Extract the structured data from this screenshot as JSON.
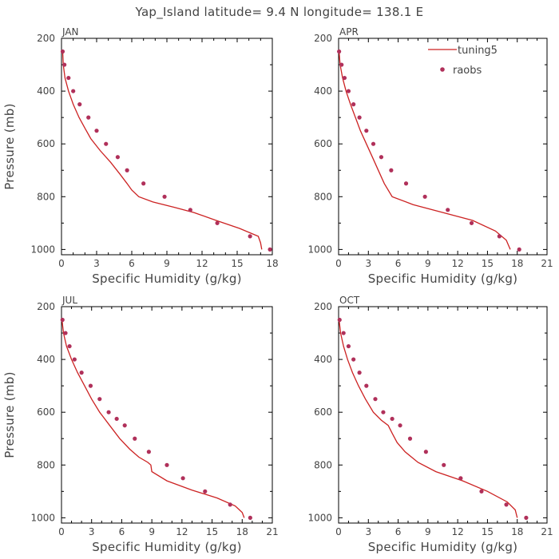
{
  "figure": {
    "title": "Yap_Island  latitude= 9.4 N longitude= 138.1 E"
  },
  "colors": {
    "model_line": "#cc2222",
    "obs_marker": "#b0305a",
    "frame": "#000000",
    "text": "#444444"
  },
  "legend": {
    "entries": [
      {
        "label": "tuning5",
        "style": "line",
        "color": "#cc2222"
      },
      {
        "label": "raobs",
        "style": "marker",
        "color": "#b0305a"
      }
    ],
    "placement": "top-right of APR panel"
  },
  "chart_data": [
    {
      "type": "line",
      "panel": "JAN",
      "xlabel": "Specific Humidity (g/kg)",
      "ylabel": "Pressure (mb)",
      "xlim": [
        0,
        18
      ],
      "ylim": [
        200,
        1020
      ],
      "y_inverted": true,
      "xticks": [
        0,
        3,
        6,
        9,
        12,
        15,
        18
      ],
      "yticks": [
        200,
        400,
        600,
        800,
        1000
      ],
      "series": [
        {
          "name": "tuning5",
          "style": "line",
          "x": [
            0.1,
            0.15,
            0.3,
            0.6,
            1.0,
            1.5,
            2.0,
            2.5,
            3.3,
            4.2,
            5.0,
            5.6,
            6.0,
            6.6,
            7.8,
            9.6,
            11.3,
            13.2,
            15.2,
            16.8,
            17.0,
            17.1
          ],
          "y": [
            250,
            300,
            350,
            400,
            450,
            500,
            540,
            580,
            625,
            670,
            715,
            750,
            775,
            800,
            820,
            840,
            860,
            890,
            920,
            950,
            975,
            1000
          ]
        },
        {
          "name": "raobs",
          "style": "markers",
          "x": [
            0.1,
            0.25,
            0.6,
            1.0,
            1.55,
            2.3,
            3.0,
            3.8,
            4.8,
            5.6,
            7.0,
            8.8,
            11.0,
            13.3,
            16.1,
            17.8
          ],
          "y": [
            250,
            300,
            350,
            400,
            450,
            500,
            550,
            600,
            650,
            700,
            750,
            800,
            850,
            900,
            950,
            1000
          ]
        }
      ]
    },
    {
      "type": "line",
      "panel": "APR",
      "xlabel": "Specific Humidity (g/kg)",
      "ylabel": "",
      "xlim": [
        0,
        21
      ],
      "ylim": [
        200,
        1020
      ],
      "y_inverted": true,
      "xticks": [
        0,
        3,
        6,
        9,
        12,
        15,
        18,
        21
      ],
      "yticks": [
        200,
        400,
        600,
        800,
        1000
      ],
      "series": [
        {
          "name": "tuning5",
          "style": "line",
          "x": [
            0.05,
            0.15,
            0.4,
            0.75,
            1.2,
            1.7,
            2.2,
            2.8,
            3.4,
            4.0,
            4.6,
            5.4,
            7.5,
            10.5,
            13.5,
            15.8,
            16.9,
            17.3
          ],
          "y": [
            250,
            300,
            350,
            400,
            450,
            500,
            550,
            600,
            650,
            700,
            750,
            800,
            830,
            860,
            890,
            930,
            965,
            1000
          ]
        },
        {
          "name": "raobs",
          "style": "markers",
          "x": [
            0.05,
            0.3,
            0.6,
            1.0,
            1.5,
            2.1,
            2.8,
            3.5,
            4.3,
            5.3,
            6.8,
            8.7,
            11.0,
            13.4,
            16.2,
            18.2
          ],
          "y": [
            250,
            300,
            350,
            400,
            450,
            500,
            550,
            600,
            650,
            700,
            750,
            800,
            850,
            900,
            950,
            1000
          ]
        }
      ]
    },
    {
      "type": "line",
      "panel": "JUL",
      "xlabel": "Specific Humidity (g/kg)",
      "ylabel": "Pressure (mb)",
      "xlim": [
        0,
        21
      ],
      "ylim": [
        200,
        1020
      ],
      "y_inverted": true,
      "xticks": [
        0,
        3,
        6,
        9,
        12,
        15,
        18,
        21
      ],
      "yticks": [
        200,
        400,
        600,
        800,
        1000
      ],
      "series": [
        {
          "name": "tuning5",
          "style": "line",
          "x": [
            0.05,
            0.2,
            0.5,
            1.0,
            1.6,
            2.3,
            3.0,
            3.8,
            4.8,
            5.8,
            6.8,
            7.7,
            8.6,
            8.9,
            9.0,
            10.5,
            13.0,
            15.5,
            17.3,
            18.0,
            18.2
          ],
          "y": [
            250,
            300,
            350,
            400,
            450,
            500,
            550,
            600,
            650,
            700,
            740,
            770,
            790,
            800,
            825,
            860,
            895,
            925,
            955,
            980,
            1000
          ]
        },
        {
          "name": "raobs",
          "style": "markers",
          "x": [
            0.1,
            0.4,
            0.8,
            1.3,
            2.0,
            2.9,
            3.8,
            4.7,
            5.5,
            6.3,
            7.3,
            8.7,
            10.5,
            12.1,
            14.3,
            16.8,
            18.8
          ],
          "y": [
            250,
            300,
            350,
            400,
            450,
            500,
            550,
            600,
            625,
            650,
            700,
            750,
            800,
            850,
            900,
            950,
            1000
          ]
        }
      ]
    },
    {
      "type": "line",
      "panel": "OCT",
      "xlabel": "Specific Humidity (g/kg)",
      "ylabel": "",
      "xlim": [
        0,
        21
      ],
      "ylim": [
        200,
        1020
      ],
      "y_inverted": true,
      "xticks": [
        0,
        3,
        6,
        9,
        12,
        15,
        18,
        21
      ],
      "yticks": [
        200,
        400,
        600,
        800,
        1000
      ],
      "series": [
        {
          "name": "tuning5",
          "style": "line",
          "x": [
            0.05,
            0.2,
            0.5,
            0.9,
            1.4,
            2.0,
            2.7,
            3.5,
            4.3,
            5.0,
            5.4,
            5.9,
            6.7,
            8.0,
            9.8,
            12.5,
            15.0,
            17.0,
            17.8,
            18.0
          ],
          "y": [
            250,
            300,
            350,
            400,
            450,
            500,
            550,
            600,
            630,
            650,
            680,
            715,
            750,
            790,
            825,
            860,
            900,
            940,
            970,
            1000
          ]
        },
        {
          "name": "raobs",
          "style": "markers",
          "x": [
            0.1,
            0.5,
            1.0,
            1.5,
            2.1,
            2.8,
            3.7,
            4.5,
            5.4,
            6.2,
            7.2,
            8.8,
            10.6,
            12.3,
            14.4,
            16.9,
            18.9
          ],
          "y": [
            250,
            300,
            350,
            400,
            450,
            500,
            550,
            600,
            625,
            650,
            700,
            750,
            800,
            850,
            900,
            950,
            1000
          ]
        }
      ]
    }
  ]
}
